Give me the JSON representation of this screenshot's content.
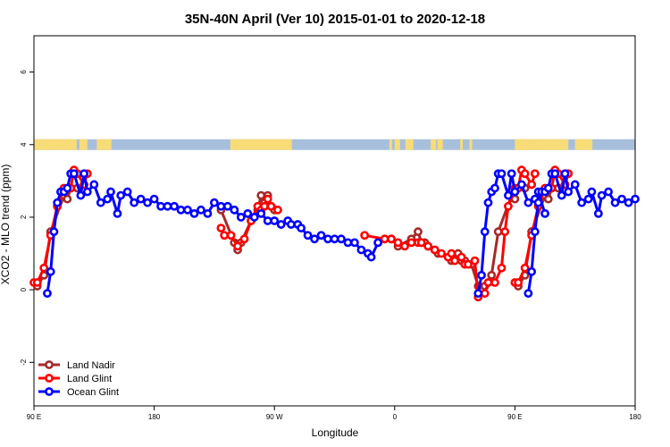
{
  "chart_data": {
    "type": "line",
    "title": "35N-40N April (Ver 10)   2015-01-01 to 2020-12-18",
    "xlabel": "Longitude",
    "ylabel": "XCO2 - MLO trend (ppm)",
    "xlim": [
      90,
      450
    ],
    "ylim": [
      -3.2,
      7
    ],
    "x_ticks": [
      {
        "value": 90,
        "label": "90 E"
      },
      {
        "value": 180,
        "label": "180"
      },
      {
        "value": 270,
        "label": "90 W"
      },
      {
        "value": 360,
        "label": "0"
      },
      {
        "value": 450,
        "label": "90 E"
      },
      {
        "value": 540,
        "label": "180"
      }
    ],
    "y_ticks": [
      {
        "value": -2,
        "label": "-2"
      },
      {
        "value": 0,
        "label": "0"
      },
      {
        "value": 2,
        "label": "2"
      },
      {
        "value": 4,
        "label": "4"
      },
      {
        "value": 6,
        "label": "6"
      }
    ],
    "x_range_display": [
      90,
      540
    ],
    "landmask": {
      "y": 4,
      "ocean_color": "#a8bfdc",
      "land_color": "#f7dc78",
      "land_segments": [
        [
          90,
          122
        ],
        [
          124,
          130
        ],
        [
          137,
          148
        ],
        [
          237,
          283
        ],
        [
          356,
          358
        ],
        [
          360,
          364
        ],
        [
          368,
          374
        ],
        [
          387,
          391
        ],
        [
          392,
          396
        ],
        [
          409,
          411
        ],
        [
          416,
          418
        ],
        [
          450,
          462
        ],
        [
          464,
          470
        ],
        [
          477,
          488
        ],
        [
          495,
          497
        ]
      ]
    },
    "legend_position": "bottom-left",
    "series": [
      {
        "name": "Land Nadir",
        "color": "#a52a2a",
        "points": [
          [
            92.5,
            0.1
          ],
          [
            97.5,
            0.4
          ],
          [
            102.5,
            1.6
          ],
          [
            112.5,
            2.6
          ],
          [
            115,
            2.5
          ],
          [
            117.5,
            2.8
          ],
          [
            122.5,
            2.8
          ],
          [
            127.5,
            2.9
          ],
          [
            230,
            2.2
          ],
          [
            240,
            1.3
          ],
          [
            242.5,
            1.1
          ],
          [
            245,
            1.3
          ],
          [
            252.5,
            1.9
          ],
          [
            257.5,
            2.2
          ],
          [
            260,
            2.6
          ],
          [
            262.5,
            2.4
          ],
          [
            265,
            2.6
          ],
          [
            267.5,
            2.3
          ],
          [
            270,
            2.2
          ],
          [
            352.5,
            1.4
          ],
          [
            357.5,
            1.4
          ],
          [
            362.5,
            1.2
          ],
          [
            372.5,
            1.4
          ],
          [
            377.5,
            1.6
          ],
          [
            380,
            1.3
          ],
          [
            382.5,
            1.3
          ],
          [
            385,
            1.2
          ],
          [
            390,
            1.1
          ],
          [
            392.5,
            1.0
          ],
          [
            400,
            0.9
          ],
          [
            402.5,
            0.8
          ],
          [
            407.5,
            1.0
          ],
          [
            410,
            0.8
          ],
          [
            412.5,
            0.8
          ],
          [
            417.5,
            0.7
          ],
          [
            422.5,
            0.1
          ],
          [
            427.5,
            0.1
          ],
          [
            432.5,
            0.4
          ],
          [
            437.5,
            1.6
          ],
          [
            447.5,
            2.6
          ],
          [
            450,
            2.5
          ],
          [
            452.5,
            2.8
          ],
          [
            457.5,
            2.8
          ],
          [
            462.5,
            2.9
          ]
        ]
      },
      {
        "name": "Land Glint",
        "color": "#ff0000",
        "points": [
          [
            90,
            0.2
          ],
          [
            92.5,
            0.2
          ],
          [
            97.5,
            0.6
          ],
          [
            102.5,
            1.5
          ],
          [
            107.5,
            2.3
          ],
          [
            112.5,
            2.8
          ],
          [
            117.5,
            2.8
          ],
          [
            120,
            3.3
          ],
          [
            122.5,
            3.2
          ],
          [
            127.5,
            2.9
          ],
          [
            130,
            3.2
          ],
          [
            230,
            1.7
          ],
          [
            232.5,
            1.5
          ],
          [
            237.5,
            1.5
          ],
          [
            242.5,
            1.2
          ],
          [
            247.5,
            1.4
          ],
          [
            252.5,
            1.9
          ],
          [
            257.5,
            2.3
          ],
          [
            260,
            2.2
          ],
          [
            262.5,
            2.3
          ],
          [
            265,
            2.5
          ],
          [
            267.5,
            2.3
          ],
          [
            272.5,
            2.2
          ],
          [
            337.5,
            1.5
          ],
          [
            352.5,
            1.4
          ],
          [
            357.5,
            1.4
          ],
          [
            362.5,
            1.3
          ],
          [
            367.5,
            1.2
          ],
          [
            372.5,
            1.3
          ],
          [
            377.5,
            1.3
          ],
          [
            380,
            1.3
          ],
          [
            385,
            1.2
          ],
          [
            390,
            1.1
          ],
          [
            395,
            1.0
          ],
          [
            400,
            0.9
          ],
          [
            402.5,
            1.0
          ],
          [
            405,
            0.8
          ],
          [
            410,
            0.9
          ],
          [
            412.5,
            0.7
          ],
          [
            415,
            0.7
          ],
          [
            420,
            0.8
          ],
          [
            422.5,
            -0.2
          ],
          [
            427.5,
            -0.1
          ],
          [
            430,
            0.2
          ],
          [
            435,
            0.2
          ],
          [
            440,
            0.6
          ],
          [
            442.5,
            1.6
          ],
          [
            445,
            2.3
          ],
          [
            450,
            2.8
          ],
          [
            452.5,
            2.8
          ],
          [
            455,
            3.3
          ],
          [
            457.5,
            3.2
          ],
          [
            462.5,
            2.9
          ],
          [
            465,
            3.2
          ]
        ]
      },
      {
        "name": "Ocean Glint",
        "color": "#0000ff",
        "points": [
          [
            100,
            -0.1
          ],
          [
            102.5,
            0.5
          ],
          [
            105,
            1.6
          ],
          [
            107.5,
            2.4
          ],
          [
            110,
            2.7
          ],
          [
            112.5,
            2.7
          ],
          [
            115,
            2.8
          ],
          [
            117.5,
            3.2
          ],
          [
            120,
            3.2
          ],
          [
            125,
            2.6
          ],
          [
            127.5,
            3.2
          ],
          [
            130,
            2.7
          ],
          [
            135,
            2.9
          ],
          [
            140,
            2.4
          ],
          [
            145,
            2.5
          ],
          [
            147.5,
            2.7
          ],
          [
            152.5,
            2.1
          ],
          [
            155,
            2.6
          ],
          [
            160,
            2.7
          ],
          [
            165,
            2.4
          ],
          [
            170,
            2.5
          ],
          [
            175,
            2.4
          ],
          [
            180,
            2.5
          ],
          [
            185,
            2.3
          ],
          [
            190,
            2.3
          ],
          [
            195,
            2.3
          ],
          [
            200,
            2.2
          ],
          [
            205,
            2.2
          ],
          [
            210,
            2.1
          ],
          [
            215,
            2.2
          ],
          [
            220,
            2.1
          ],
          [
            225,
            2.4
          ],
          [
            230,
            2.3
          ],
          [
            235,
            2.3
          ],
          [
            240,
            2.2
          ],
          [
            245,
            2.0
          ],
          [
            250,
            2.1
          ],
          [
            255,
            2.0
          ],
          [
            260,
            2.1
          ],
          [
            265,
            1.9
          ],
          [
            270,
            1.9
          ],
          [
            275,
            1.8
          ],
          [
            280,
            1.9
          ],
          [
            282.5,
            1.8
          ],
          [
            287.5,
            1.8
          ],
          [
            290,
            1.7
          ],
          [
            295,
            1.5
          ],
          [
            300,
            1.4
          ],
          [
            305,
            1.5
          ],
          [
            310,
            1.4
          ],
          [
            315,
            1.4
          ],
          [
            320,
            1.4
          ],
          [
            325,
            1.3
          ],
          [
            330,
            1.3
          ],
          [
            335,
            1.1
          ],
          [
            340,
            1.0
          ],
          [
            342.5,
            0.9
          ],
          [
            347.5,
            1.3
          ],
          [
            422.5,
            -0.1
          ],
          [
            425,
            0.4
          ],
          [
            427.5,
            1.6
          ],
          [
            430,
            2.4
          ],
          [
            432.5,
            2.7
          ],
          [
            435,
            2.8
          ],
          [
            437.5,
            3.2
          ],
          [
            440,
            3.2
          ],
          [
            445,
            2.6
          ],
          [
            447.5,
            3.2
          ],
          [
            450,
            2.7
          ],
          [
            455,
            2.9
          ],
          [
            460,
            2.4
          ],
          [
            465,
            2.5
          ],
          [
            467.5,
            2.7
          ],
          [
            472.5,
            2.1
          ]
        ]
      }
    ]
  }
}
